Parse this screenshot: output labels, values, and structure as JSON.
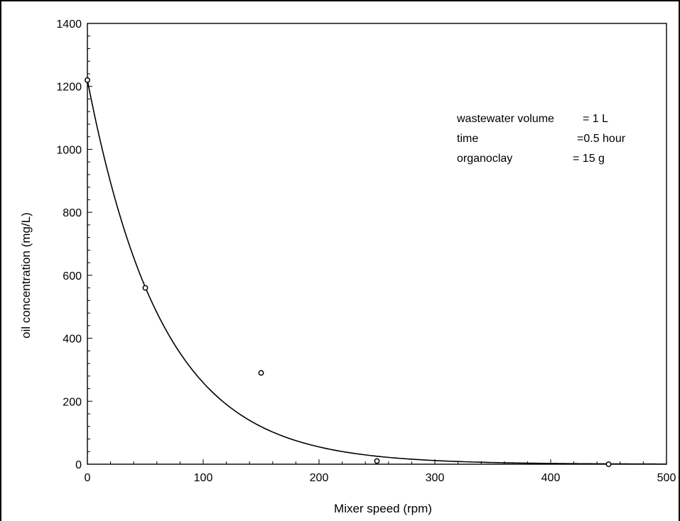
{
  "chart_data": {
    "type": "scatter",
    "xlabel": "Mixer speed (rpm)",
    "ylabel": "oil concentration (mg/L)",
    "xlim": [
      0,
      500
    ],
    "ylim": [
      0,
      1400
    ],
    "x_ticks": [
      0,
      100,
      200,
      300,
      400,
      500
    ],
    "y_ticks": [
      0,
      200,
      400,
      600,
      800,
      1000,
      1200,
      1400
    ],
    "grid": false,
    "series": [
      {
        "marker": "open-circle",
        "points": [
          {
            "x": 0,
            "y": 1220
          },
          {
            "x": 50,
            "y": 560
          },
          {
            "x": 150,
            "y": 290
          },
          {
            "x": 250,
            "y": 10
          },
          {
            "x": 450,
            "y": 0
          }
        ]
      }
    ],
    "fit_curve": {
      "kind": "exponential-decay",
      "a": 1220,
      "b": 0.0155,
      "color": "#000000"
    },
    "annotations": [
      {
        "label": "wastewater volume",
        "value": "= 1 L"
      },
      {
        "label": "time",
        "value": "=0.5 hour"
      },
      {
        "label": "organoclay",
        "value": "= 15 g"
      }
    ]
  }
}
